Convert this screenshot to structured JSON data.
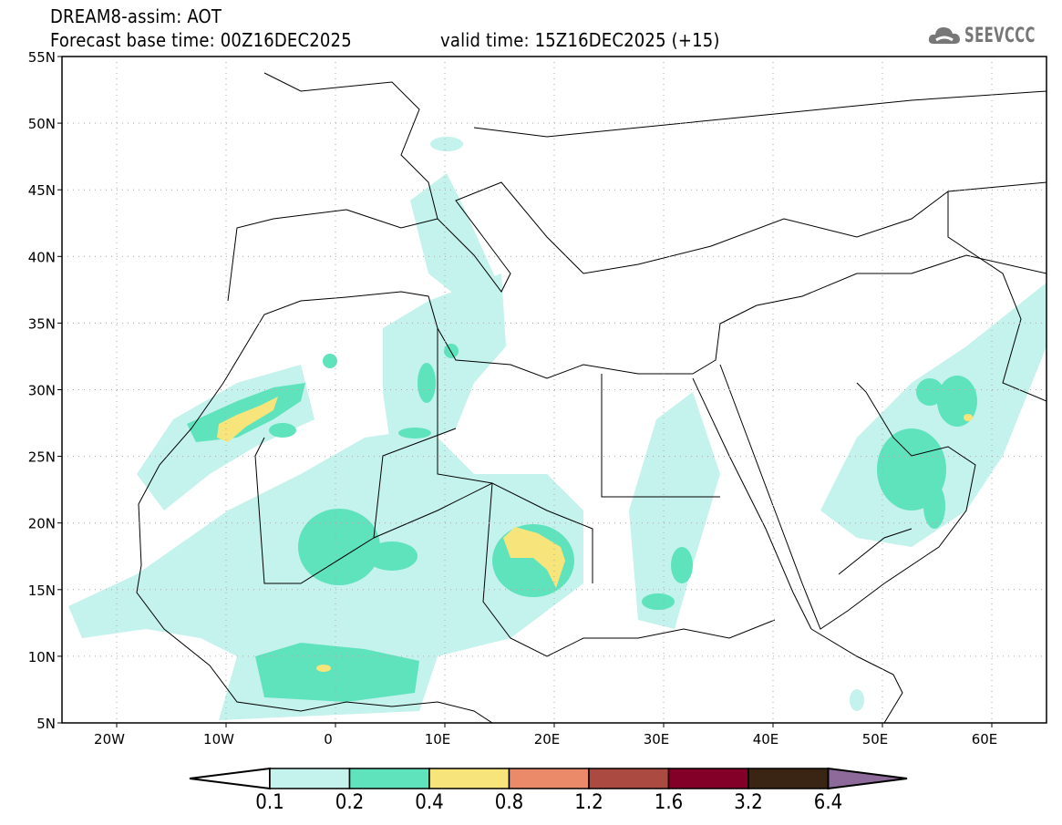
{
  "header": {
    "title": "DREAM8-assim: AOT",
    "base_time": "Forecast base time: 00Z16DEC2025",
    "valid_time": "valid time: 15Z16DEC2025 (+15)",
    "logo_text": "SEEVCCC"
  },
  "map": {
    "lon_range": [
      -25,
      65
    ],
    "lat_range": [
      5,
      55
    ],
    "lat_labels": [
      "55N",
      "50N",
      "45N",
      "40N",
      "35N",
      "30N",
      "25N",
      "20N",
      "15N",
      "10N",
      "5N"
    ],
    "lon_labels": [
      "20W",
      "10W",
      "0",
      "10E",
      "20E",
      "30E",
      "40E",
      "50E",
      "60E"
    ]
  },
  "colorbar": {
    "labels": [
      "0.1",
      "0.2",
      "0.4",
      "0.8",
      "1.2",
      "1.6",
      "3.2",
      "6.4"
    ],
    "colors": [
      "#ffffff",
      "#c4f2ec",
      "#5ee3bd",
      "#f7e47a",
      "#ea8a68",
      "#ab4a40",
      "#830028",
      "#3a2414",
      "#8e6a9a"
    ]
  }
}
